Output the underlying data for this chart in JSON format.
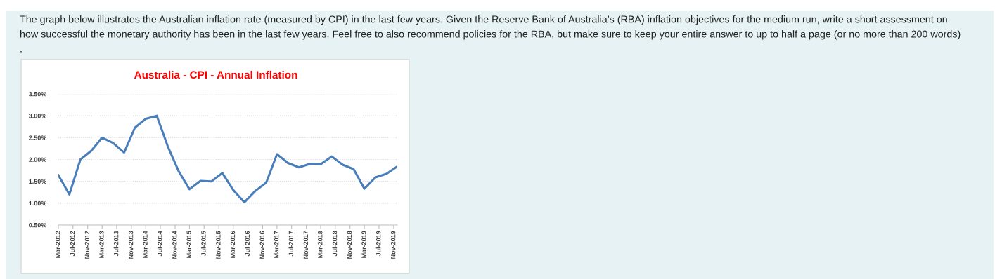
{
  "chart_data": {
    "type": "line",
    "title": "Australia - CPI - Annual Inflation",
    "annotations": [
      "The graph below illustrates the Australian inflation rate (measured by CPI) in the last few years. Given the Reserve Bank of Australia’s (RBA) inflation objectives for the medium run, write a short assessment on\nhow successful the monetary authority has been in the last few years. Feel free to also recommend policies for the RBA, but make sure to keep your entire answer to up to half a page (or no more than 200 words)\n."
    ],
    "x": [
      "2012-03",
      "2012-06",
      "2012-09",
      "2012-12",
      "2013-03",
      "2013-06",
      "2013-09",
      "2013-12",
      "2014-03",
      "2014-06",
      "2014-09",
      "2014-12",
      "2015-03",
      "2015-06",
      "2015-09",
      "2015-12",
      "2016-03",
      "2016-06",
      "2016-09",
      "2016-12",
      "2017-03",
      "2017-06",
      "2017-09",
      "2017-12",
      "2018-03",
      "2018-06",
      "2018-09",
      "2018-12",
      "2019-03",
      "2019-06",
      "2019-09",
      "2019-12"
    ],
    "series": [
      {
        "color": "#4a7ebb",
        "values": [
          1.64,
          1.2,
          2.0,
          2.2,
          2.5,
          2.38,
          2.16,
          2.73,
          2.93,
          3.0,
          2.3,
          1.73,
          1.32,
          1.51,
          1.5,
          1.69,
          1.3,
          1.02,
          1.28,
          1.47,
          2.12,
          1.92,
          1.82,
          1.9,
          1.89,
          2.07,
          1.88,
          1.78,
          1.33,
          1.59,
          1.67,
          1.84
        ]
      }
    ],
    "xlim": [
      "2012-03",
      "2019-12"
    ],
    "xticks": [
      {
        "value": "2012-03",
        "label": "Mar-2012"
      },
      {
        "value": "2012-07",
        "label": "Jul-2012"
      },
      {
        "value": "2012-11",
        "label": "Nov-2012"
      },
      {
        "value": "2013-03",
        "label": "Mar-2013"
      },
      {
        "value": "2013-07",
        "label": "Jul-2013"
      },
      {
        "value": "2013-11",
        "label": "Nov-2013"
      },
      {
        "value": "2014-03",
        "label": "Mar-2014"
      },
      {
        "value": "2014-07",
        "label": "Jul-2014"
      },
      {
        "value": "2014-11",
        "label": "Nov-2014"
      },
      {
        "value": "2015-03",
        "label": "Mar-2015"
      },
      {
        "value": "2015-07",
        "label": "Jul-2015"
      },
      {
        "value": "2015-11",
        "label": "Nov-2015"
      },
      {
        "value": "2016-03",
        "label": "Mar-2016"
      },
      {
        "value": "2016-07",
        "label": "Jul-2016"
      },
      {
        "value": "2016-11",
        "label": "Nov-2016"
      },
      {
        "value": "2017-03",
        "label": "Mar-2017"
      },
      {
        "value": "2017-07",
        "label": "Jul-2017"
      },
      {
        "value": "2017-11",
        "label": "Nov-2017"
      },
      {
        "value": "2018-03",
        "label": "Mar-2018"
      },
      {
        "value": "2018-07",
        "label": "Jul-2018"
      },
      {
        "value": "2018-11",
        "label": "Nov-2018"
      },
      {
        "value": "2019-03",
        "label": "Mar-2019"
      },
      {
        "value": "2019-07",
        "label": "Jul-2019"
      },
      {
        "value": "2019-11",
        "label": "Nov-2019"
      }
    ],
    "ylim": [
      0.5,
      3.5
    ],
    "yticks": [
      {
        "value": 0.5,
        "label": "0.50%"
      },
      {
        "value": 1.0,
        "label": "1.00%"
      },
      {
        "value": 1.5,
        "label": "1.50%"
      },
      {
        "value": 2.0,
        "label": "2.00%"
      },
      {
        "value": 2.5,
        "label": "2.50%"
      },
      {
        "value": 3.0,
        "label": "3.00%"
      },
      {
        "value": 3.5,
        "label": "3.50%"
      }
    ],
    "grid": "y",
    "marker": "none",
    "line_style": "solid"
  }
}
